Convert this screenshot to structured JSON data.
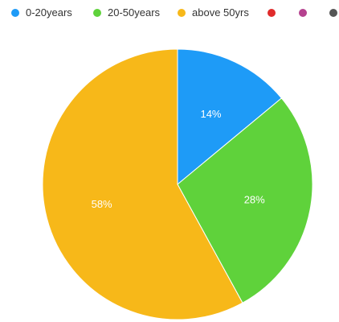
{
  "chart_data": {
    "type": "pie",
    "series": [
      {
        "name": "0-20years",
        "value": 14,
        "label": "14%",
        "color": "#1e9bf7"
      },
      {
        "name": "20-50years",
        "value": 28,
        "label": "28%",
        "color": "#5fd23b"
      },
      {
        "name": "above 50yrs",
        "value": 58,
        "label": "58%",
        "color": "#f7b819"
      },
      {
        "name": "",
        "value": 0,
        "label": "",
        "color": "#e02b2b"
      },
      {
        "name": "",
        "value": 0,
        "label": "",
        "color": "#b5428f"
      },
      {
        "name": "",
        "value": 0,
        "label": "",
        "color": "#555555"
      }
    ],
    "legend_position": "top",
    "start_angle": "top",
    "direction": "clockwise"
  }
}
